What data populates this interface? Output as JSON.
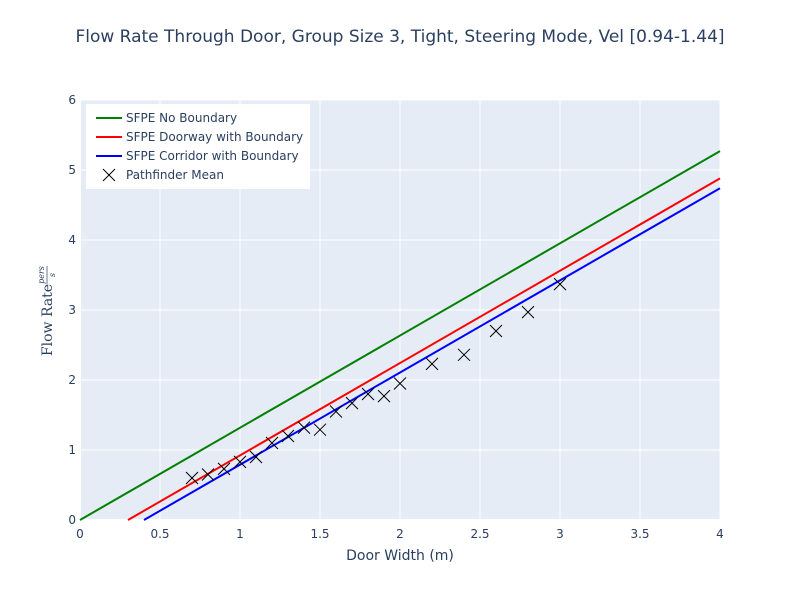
{
  "chart_data": {
    "type": "line",
    "title": "Flow Rate Through Door, Group Size 3, Tight, Steering Mode, Vel [0.94-1.44]",
    "xlabel": "Door Width (m)",
    "ylabel": {
      "main": "Flow Rate",
      "numerator": "pers",
      "denominator": "s"
    },
    "xlim": [
      0,
      4
    ],
    "ylim": [
      0,
      6
    ],
    "x_ticks": [
      "0",
      "0.5",
      "1",
      "1.5",
      "2",
      "2.5",
      "3",
      "3.5",
      "4"
    ],
    "y_ticks": [
      "0",
      "1",
      "2",
      "3",
      "4",
      "5",
      "6"
    ],
    "grid": true,
    "legend_position": "top-left",
    "series": [
      {
        "name": "SFPE No Boundary",
        "kind": "line",
        "color": "#008000",
        "x": [
          0,
          4
        ],
        "y": [
          0,
          5.27
        ]
      },
      {
        "name": "SFPE Doorway with Boundary",
        "kind": "line",
        "color": "#ff0000",
        "x": [
          0.3,
          4
        ],
        "y": [
          0,
          4.88
        ]
      },
      {
        "name": "SFPE Corridor with Boundary",
        "kind": "line",
        "color": "#0000ff",
        "x": [
          0.4,
          4
        ],
        "y": [
          0,
          4.74
        ]
      },
      {
        "name": "Pathfinder Mean",
        "kind": "markers",
        "marker": "x",
        "color": "#000000",
        "x": [
          0.7,
          0.8,
          0.9,
          1.0,
          1.1,
          1.2,
          1.3,
          1.4,
          1.5,
          1.6,
          1.7,
          1.8,
          1.9,
          2.0,
          2.2,
          2.4,
          2.6,
          2.8,
          3.0
        ],
        "y": [
          0.6,
          0.65,
          0.73,
          0.83,
          0.9,
          1.1,
          1.2,
          1.32,
          1.29,
          1.55,
          1.67,
          1.8,
          1.77,
          1.95,
          2.23,
          2.36,
          2.7,
          2.97,
          3.37
        ]
      }
    ]
  }
}
